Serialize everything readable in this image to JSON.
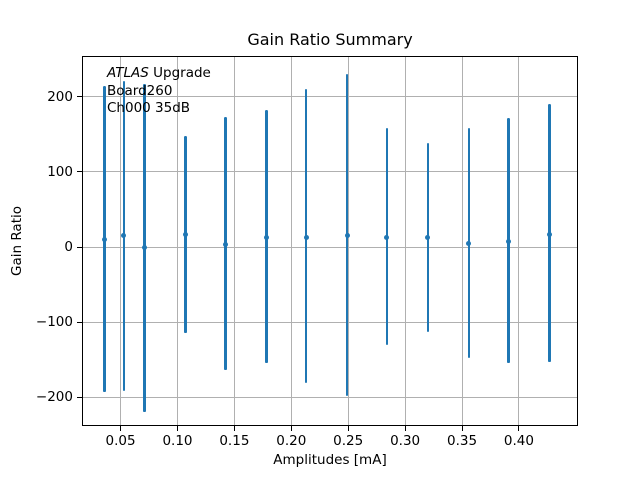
{
  "figure": {
    "background": "#ffffff"
  },
  "chart_data": {
    "type": "scatter",
    "style": "errorbar",
    "title": "Gain Ratio Summary",
    "xlabel": "Amplitudes [mA]",
    "ylabel": "Gain Ratio",
    "annotation": {
      "line1_italic": "ATLAS",
      "line1_rest": " Upgrade",
      "line2": "Board260",
      "line3": "Ch000 35dB"
    },
    "grid": true,
    "grid_color": "#b0b0b0",
    "series_color": "#1f77b4",
    "xlim": [
      0.017,
      0.451
    ],
    "ylim": [
      -237,
      253
    ],
    "xticks": [
      0.05,
      0.1,
      0.15,
      0.2,
      0.25,
      0.3,
      0.35,
      0.4
    ],
    "xtick_labels": [
      "0.05",
      "0.10",
      "0.15",
      "0.20",
      "0.25",
      "0.30",
      "0.35",
      "0.40"
    ],
    "yticks": [
      -200,
      -100,
      0,
      100,
      200
    ],
    "ytick_labels": [
      "−200",
      "−100",
      "0",
      "100",
      "200"
    ],
    "points": [
      {
        "x": 0.036,
        "y": 10,
        "ylo": -193,
        "yhi": 215
      },
      {
        "x": 0.053,
        "y": 15,
        "ylo": -192,
        "yhi": 221
      },
      {
        "x": 0.071,
        "y": -1,
        "ylo": -220,
        "yhi": 217
      },
      {
        "x": 0.107,
        "y": 16,
        "ylo": -114,
        "yhi": 148
      },
      {
        "x": 0.142,
        "y": 3,
        "ylo": -164,
        "yhi": 173
      },
      {
        "x": 0.178,
        "y": 12,
        "ylo": -155,
        "yhi": 182
      },
      {
        "x": 0.213,
        "y": 12,
        "ylo": -181,
        "yhi": 210
      },
      {
        "x": 0.249,
        "y": 15,
        "ylo": -198,
        "yhi": 230
      },
      {
        "x": 0.284,
        "y": 12,
        "ylo": -131,
        "yhi": 158
      },
      {
        "x": 0.32,
        "y": 12,
        "ylo": -113,
        "yhi": 139
      },
      {
        "x": 0.356,
        "y": 5,
        "ylo": -148,
        "yhi": 159
      },
      {
        "x": 0.391,
        "y": 8,
        "ylo": -155,
        "yhi": 172
      },
      {
        "x": 0.427,
        "y": 17,
        "ylo": -153,
        "yhi": 191
      }
    ]
  }
}
